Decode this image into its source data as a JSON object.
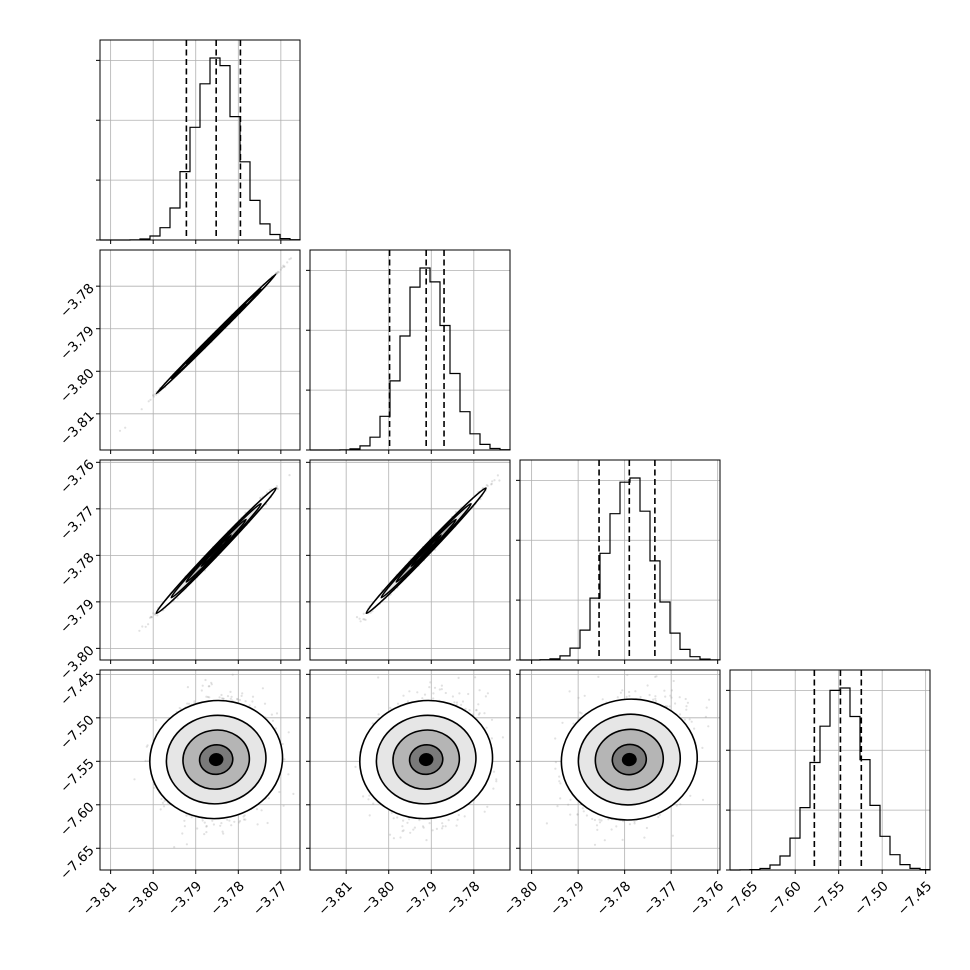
{
  "chart_data": {
    "type": "corner",
    "parameters": [
      {
        "index": 0,
        "mean": -3.7852,
        "sigma": 0.0052,
        "q16": -3.7922,
        "q50": -3.7852,
        "q84": -3.7795,
        "range": [
          -3.8125,
          -3.7655
        ],
        "ticks": [
          -3.81,
          -3.8,
          -3.79,
          -3.78,
          -3.77
        ]
      },
      {
        "index": 1,
        "mean": -3.7912,
        "sigma": 0.0052,
        "q16": -3.7998,
        "q50": -3.7912,
        "q84": -3.787,
        "range": [
          -3.8185,
          -3.7715
        ],
        "ticks": [
          -3.81,
          -3.8,
          -3.79,
          -3.78
        ]
      },
      {
        "index": 2,
        "mean": -3.779,
        "sigma": 0.005,
        "q16": -3.7855,
        "q50": -3.779,
        "q84": -3.7735,
        "range": [
          -3.8025,
          -3.7595
        ],
        "ticks": [
          -3.8,
          -3.79,
          -3.78,
          -3.77,
          -3.76
        ]
      },
      {
        "index": 3,
        "mean": -7.548,
        "sigma": 0.028,
        "q16": -7.578,
        "q50": -7.548,
        "q84": -7.524,
        "range": [
          -7.675,
          -7.445
        ],
        "ticks": [
          -7.65,
          -7.6,
          -7.55,
          -7.5,
          -7.45
        ]
      }
    ],
    "correlation": [
      [
        1.0,
        0.999,
        0.995,
        0.12
      ],
      [
        0.999,
        1.0,
        0.995,
        0.12
      ],
      [
        0.995,
        0.995,
        1.0,
        0.12
      ],
      [
        0.12,
        0.12,
        0.12,
        1.0
      ]
    ],
    "histogram_bins": 20,
    "contour_levels_sigma": [
      0.5,
      1.0,
      1.5,
      2.0
    ],
    "grid": true,
    "diagonal_y_ticks": 3,
    "axis_labels": []
  }
}
